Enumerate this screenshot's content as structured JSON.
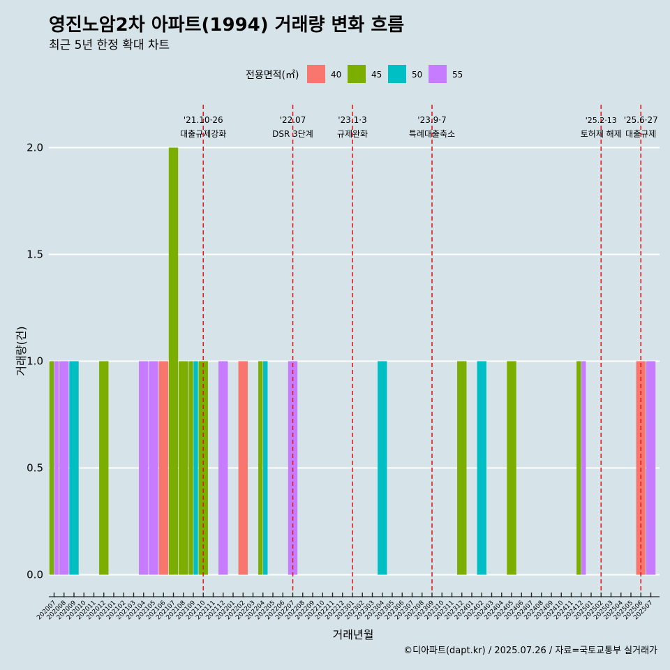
{
  "chart_data": {
    "type": "bar",
    "title": "영진노암2차 아파트(1994) 거래량 변화 흐름",
    "subtitle": "최근 5년 한정 확대 차트",
    "xlabel": "거래년월",
    "ylabel": "거래량(건)",
    "ylim": [
      0,
      2.2
    ],
    "yticks": [
      "0.0",
      "0.5",
      "1.0",
      "1.5",
      "2.0"
    ],
    "grid": "horizontal",
    "legend": {
      "title": "전용면적(㎡)",
      "placement": "top",
      "items": [
        {
          "name": "40",
          "color": "#F8766D"
        },
        {
          "name": "45",
          "color": "#7CAE00"
        },
        {
          "name": "50",
          "color": "#00BFC4"
        },
        {
          "name": "55",
          "color": "#C77CFF"
        }
      ]
    },
    "categories": [
      "202007",
      "202008",
      "202009",
      "202010",
      "202011",
      "202012",
      "202101",
      "202102",
      "202103",
      "202104",
      "202105",
      "202106",
      "202107",
      "202108",
      "202109",
      "202110",
      "202111",
      "202112",
      "202201",
      "202202",
      "202203",
      "202204",
      "202205",
      "202206",
      "202207",
      "202208",
      "202209",
      "202210",
      "202211",
      "202212",
      "202301",
      "202302",
      "202303",
      "202304",
      "202305",
      "202306",
      "202307",
      "202308",
      "202309",
      "202310",
      "202311",
      "202312",
      "202401",
      "202402",
      "202403",
      "202404",
      "202405",
      "202406",
      "202407",
      "202408",
      "202409",
      "202410",
      "202411",
      "202412",
      "202501",
      "202502",
      "202503",
      "202504",
      "202505",
      "202506",
      "202507"
    ],
    "bars": [
      {
        "month": "202007",
        "segments": [
          {
            "area": "45",
            "value": 1
          },
          {
            "area": "55",
            "value": 1
          }
        ]
      },
      {
        "month": "202008",
        "segments": [
          {
            "area": "55",
            "value": 1
          }
        ]
      },
      {
        "month": "202009",
        "segments": [
          {
            "area": "50",
            "value": 1
          }
        ]
      },
      {
        "month": "202012",
        "segments": [
          {
            "area": "45",
            "value": 1
          }
        ]
      },
      {
        "month": "202104",
        "segments": [
          {
            "area": "55",
            "value": 1
          }
        ]
      },
      {
        "month": "202105",
        "segments": [
          {
            "area": "55",
            "value": 1
          }
        ]
      },
      {
        "month": "202106",
        "segments": [
          {
            "area": "40",
            "value": 1
          }
        ]
      },
      {
        "month": "202107",
        "segments": [
          {
            "area": "45",
            "value": 2
          }
        ]
      },
      {
        "month": "202108",
        "segments": [
          {
            "area": "45",
            "value": 1
          }
        ]
      },
      {
        "month": "202109",
        "segments": [
          {
            "area": "45",
            "value": 1
          },
          {
            "area": "50",
            "value": 1
          }
        ]
      },
      {
        "month": "202110",
        "segments": [
          {
            "area": "45",
            "value": 1
          }
        ]
      },
      {
        "month": "202112",
        "segments": [
          {
            "area": "55",
            "value": 1
          }
        ]
      },
      {
        "month": "202202",
        "segments": [
          {
            "area": "40",
            "value": 1
          }
        ]
      },
      {
        "month": "202204",
        "segments": [
          {
            "area": "45",
            "value": 1
          },
          {
            "area": "50",
            "value": 1
          }
        ]
      },
      {
        "month": "202207",
        "segments": [
          {
            "area": "55",
            "value": 1
          }
        ]
      },
      {
        "month": "202304",
        "segments": [
          {
            "area": "50",
            "value": 1
          }
        ]
      },
      {
        "month": "202312",
        "segments": [
          {
            "area": "45",
            "value": 1
          }
        ]
      },
      {
        "month": "202402",
        "segments": [
          {
            "area": "50",
            "value": 1
          }
        ]
      },
      {
        "month": "202405",
        "segments": [
          {
            "area": "45",
            "value": 1
          }
        ]
      },
      {
        "month": "202412",
        "segments": [
          {
            "area": "45",
            "value": 1
          },
          {
            "area": "55",
            "value": 1
          }
        ]
      },
      {
        "month": "202506",
        "segments": [
          {
            "area": "40",
            "value": 1
          }
        ]
      },
      {
        "month": "202507",
        "segments": [
          {
            "area": "55",
            "value": 1
          }
        ]
      }
    ],
    "events": [
      {
        "month": "202110",
        "date": "'21.10·26",
        "label": "대출규제강화"
      },
      {
        "month": "202207",
        "date": "'22.07",
        "label": "DSR 3단계"
      },
      {
        "month": "202301",
        "date": "'23.1·3",
        "label": "규제완화"
      },
      {
        "month": "202309",
        "date": "'23.9·7",
        "label": "특례대출축소"
      },
      {
        "month": "202502",
        "date": "'25.2·13",
        "label": "토허제 해제"
      },
      {
        "month": "202506",
        "date": "'25.6·27",
        "label": "대출규제"
      }
    ],
    "caption": "©디아파트(dapt.kr) / 2025.07.26 / 자료=국토교통부 실거래가"
  }
}
